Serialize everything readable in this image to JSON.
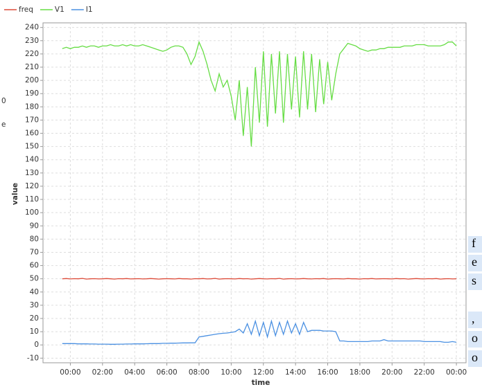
{
  "chart_data": {
    "type": "line",
    "xlabel": "time",
    "ylabel": "value",
    "legend": "top-left",
    "grid": true,
    "xlim": [
      -1.7,
      24.6
    ],
    "ylim": [
      -13.5,
      243.5
    ],
    "xticks": [
      {
        "value": 0,
        "label": "00:00"
      },
      {
        "value": 2,
        "label": "02:00"
      },
      {
        "value": 4,
        "label": "04:00"
      },
      {
        "value": 6,
        "label": "06:00"
      },
      {
        "value": 8,
        "label": "08:00"
      },
      {
        "value": 10,
        "label": "10:00"
      },
      {
        "value": 12,
        "label": "12:00"
      },
      {
        "value": 14,
        "label": "14:00"
      },
      {
        "value": 16,
        "label": "16:00"
      },
      {
        "value": 18,
        "label": "18:00"
      },
      {
        "value": 20,
        "label": "20:00"
      },
      {
        "value": 22,
        "label": "22:00"
      },
      {
        "value": 24,
        "label": "00:00"
      }
    ],
    "yticks": [
      -10,
      0,
      10,
      20,
      30,
      40,
      50,
      60,
      70,
      80,
      90,
      100,
      110,
      120,
      130,
      140,
      150,
      160,
      170,
      180,
      190,
      200,
      210,
      220,
      230,
      240
    ],
    "x": [
      -0.5,
      -0.25,
      0,
      0.25,
      0.5,
      0.75,
      1,
      1.25,
      1.5,
      1.75,
      2,
      2.25,
      2.5,
      2.75,
      3,
      3.25,
      3.5,
      3.75,
      4,
      4.25,
      4.5,
      4.75,
      5,
      5.25,
      5.5,
      5.75,
      6,
      6.25,
      6.5,
      6.75,
      7,
      7.25,
      7.5,
      7.75,
      8,
      8.25,
      8.5,
      8.75,
      9,
      9.25,
      9.5,
      9.75,
      10,
      10.25,
      10.5,
      10.75,
      11,
      11.25,
      11.5,
      11.75,
      12,
      12.25,
      12.5,
      12.75,
      13,
      13.25,
      13.5,
      13.75,
      14,
      14.25,
      14.5,
      14.75,
      15,
      15.25,
      15.5,
      15.75,
      16,
      16.25,
      16.5,
      16.75,
      17,
      17.25,
      17.5,
      17.75,
      18,
      18.25,
      18.5,
      18.75,
      19,
      19.25,
      19.5,
      19.75,
      20,
      20.25,
      20.5,
      20.75,
      21,
      21.25,
      21.5,
      21.75,
      22,
      22.25,
      22.5,
      22.75,
      23,
      23.25,
      23.5,
      23.75,
      24
    ],
    "series": [
      {
        "name": "freq",
        "color": "#dd4b39",
        "values": [
          50,
          50.2,
          49.9,
          50.1,
          50,
          50.3,
          49.8,
          50,
          50.1,
          49.9,
          50,
          50.2,
          50,
          49.8,
          50.1,
          50,
          50.2,
          49.9,
          50,
          50.1,
          49.9,
          50,
          50.2,
          50,
          49.8,
          50,
          50.1,
          50,
          49.9,
          50.2,
          50,
          50,
          49.8,
          50.1,
          50,
          50.2,
          49.9,
          50,
          50.3,
          49.8,
          50,
          50.1,
          50,
          49.9,
          50.2,
          50,
          50.1,
          49.8,
          50,
          50.2,
          50,
          49.9,
          50.1,
          50,
          50.3,
          49.8,
          50,
          50.1,
          49.9,
          50,
          50.2,
          50,
          49.9,
          50.1,
          50,
          50.2,
          49.8,
          50,
          50.1,
          50,
          49.9,
          50.2,
          50,
          50,
          49.8,
          50.1,
          50,
          50.2,
          49.9,
          50,
          50.1,
          50,
          49.9,
          50.2,
          50,
          50.1,
          49.8,
          50,
          50.2,
          50,
          49.9,
          50.1,
          50,
          50.2,
          49.8,
          50,
          50.1,
          49.9,
          50
        ]
      },
      {
        "name": "V1",
        "color": "#66dd44",
        "values": [
          224,
          225,
          224,
          225,
          225,
          226,
          225,
          226,
          226,
          225,
          226,
          226,
          227,
          226,
          226,
          227,
          226,
          227,
          226,
          226,
          227,
          226,
          225,
          224,
          223,
          222,
          223,
          225,
          226,
          226,
          225,
          220,
          212,
          218,
          229,
          222,
          212,
          200,
          192,
          205,
          195,
          200,
          188,
          170,
          200,
          158,
          195,
          150,
          210,
          168,
          222,
          165,
          220,
          175,
          222,
          168,
          220,
          178,
          218,
          172,
          222,
          178,
          220,
          176,
          216,
          182,
          214,
          185,
          205,
          220,
          224,
          228,
          227,
          226,
          224,
          223,
          222,
          223,
          223,
          224,
          224,
          225,
          225,
          225,
          225,
          226,
          226,
          226,
          227,
          227,
          227,
          226,
          226,
          226,
          226,
          227,
          229,
          229,
          226
        ]
      },
      {
        "name": "I1",
        "color": "#4a90e2",
        "values": [
          1,
          1,
          1,
          1,
          0.8,
          0.8,
          0.8,
          0.7,
          0.7,
          0.6,
          0.6,
          0.6,
          0.5,
          0.5,
          0.6,
          0.6,
          0.7,
          0.7,
          0.8,
          0.8,
          0.8,
          0.9,
          1,
          1,
          1,
          1.2,
          1.2,
          1.3,
          1.3,
          1.4,
          1.5,
          1.5,
          1.6,
          1.6,
          6,
          6.5,
          7,
          7.5,
          8,
          8.5,
          8.8,
          9,
          9.5,
          10,
          12,
          9,
          16,
          8,
          18,
          7,
          17,
          6,
          18,
          7,
          17,
          8,
          18,
          9,
          16,
          8,
          17,
          10,
          11,
          11,
          11,
          10.5,
          10.5,
          10.5,
          10,
          3,
          3,
          2.5,
          2.5,
          2.5,
          2.5,
          2.5,
          2.5,
          3,
          3,
          3,
          4,
          3,
          3,
          3,
          3,
          3,
          3,
          3,
          3,
          3,
          2.5,
          2.5,
          2.5,
          2.5,
          2.5,
          2,
          2,
          2.5,
          2
        ]
      }
    ],
    "fragments": [
      "0",
      "e",
      "f",
      "e",
      "s",
      ",",
      "o",
      "o"
    ]
  }
}
